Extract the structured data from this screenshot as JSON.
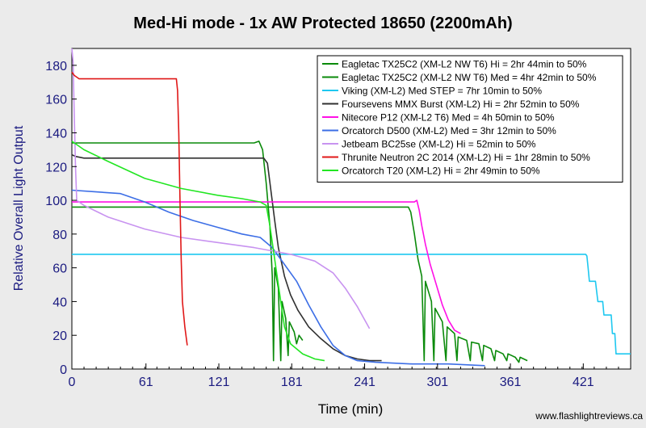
{
  "chart_data": {
    "type": "line",
    "title": "Med-Hi mode - 1x AW Protected 18650 (2200mAh)",
    "xlabel": "Time (min)",
    "ylabel": "Relative Overall Light Output",
    "xlim": [
      0,
      460
    ],
    "ylim": [
      0,
      190
    ],
    "x_ticks": [
      "0",
      "61",
      "121",
      "181",
      "241",
      "301",
      "361",
      "421"
    ],
    "y_ticks": [
      "0",
      "20",
      "40",
      "60",
      "80",
      "100",
      "120",
      "140",
      "160",
      "180"
    ],
    "grid": false,
    "legend_position": "top-right",
    "watermark": "www.flashlightreviews.ca",
    "series": [
      {
        "name": "Eagletac TX25C2 (XM-L2 NW T6) Hi = 2hr 44min to 50%",
        "color": "#0a8a0a",
        "points": [
          [
            0,
            134
          ],
          [
            30,
            134
          ],
          [
            60,
            134
          ],
          [
            90,
            134
          ],
          [
            120,
            134
          ],
          [
            150,
            134
          ],
          [
            154,
            135
          ],
          [
            157,
            130
          ],
          [
            160,
            110
          ],
          [
            163,
            85
          ],
          [
            165,
            55
          ],
          [
            166,
            5
          ],
          [
            167,
            60
          ],
          [
            170,
            48
          ],
          [
            172,
            5
          ],
          [
            173,
            40
          ],
          [
            176,
            30
          ],
          [
            178,
            8
          ],
          [
            179,
            28
          ],
          [
            183,
            22
          ],
          [
            185,
            15
          ],
          [
            187,
            20
          ],
          [
            190,
            17
          ]
        ]
      },
      {
        "name": "Eagletac TX25C2 (XM-L2 NW T6) Med = 4hr 42min to 50%",
        "color": "#0a8a0a",
        "points": [
          [
            0,
            96
          ],
          [
            50,
            96
          ],
          [
            100,
            96
          ],
          [
            150,
            96
          ],
          [
            200,
            96
          ],
          [
            250,
            96
          ],
          [
            277,
            96
          ],
          [
            279,
            93
          ],
          [
            282,
            80
          ],
          [
            285,
            65
          ],
          [
            288,
            55
          ],
          [
            290,
            5
          ],
          [
            291,
            52
          ],
          [
            296,
            40
          ],
          [
            298,
            5
          ],
          [
            299,
            36
          ],
          [
            305,
            28
          ],
          [
            308,
            5
          ],
          [
            309,
            25
          ],
          [
            315,
            21
          ],
          [
            317,
            5
          ],
          [
            318,
            19
          ],
          [
            325,
            17
          ],
          [
            328,
            5
          ],
          [
            329,
            16
          ],
          [
            335,
            15
          ],
          [
            338,
            5
          ],
          [
            339,
            14
          ],
          [
            345,
            12
          ],
          [
            348,
            5
          ],
          [
            349,
            11
          ],
          [
            355,
            9
          ],
          [
            358,
            5
          ],
          [
            359,
            9
          ],
          [
            365,
            7
          ],
          [
            368,
            4
          ],
          [
            369,
            7
          ],
          [
            375,
            5
          ]
        ]
      },
      {
        "name": "Viking (XM-L2) Med STEP = 7hr 10min to 50%",
        "color": "#1ec8f0",
        "points": [
          [
            0,
            68
          ],
          [
            60,
            68
          ],
          [
            120,
            68
          ],
          [
            180,
            68
          ],
          [
            240,
            68
          ],
          [
            300,
            68
          ],
          [
            360,
            68
          ],
          [
            400,
            68
          ],
          [
            423,
            68
          ],
          [
            424,
            67
          ],
          [
            425,
            60
          ],
          [
            426,
            52
          ],
          [
            431,
            52
          ],
          [
            432,
            46
          ],
          [
            433,
            40
          ],
          [
            437,
            40
          ],
          [
            438,
            32
          ],
          [
            444,
            32
          ],
          [
            445,
            21
          ],
          [
            447,
            21
          ],
          [
            448,
            9
          ],
          [
            460,
            9
          ]
        ]
      },
      {
        "name": "Foursevens MMX Burst (XM-L2) Hi = 2hr 52min to 50%",
        "color": "#303030",
        "points": [
          [
            0,
            127
          ],
          [
            3,
            126
          ],
          [
            10,
            125
          ],
          [
            60,
            125
          ],
          [
            120,
            125
          ],
          [
            158,
            125
          ],
          [
            161,
            122
          ],
          [
            164,
            105
          ],
          [
            167,
            88
          ],
          [
            170,
            72
          ],
          [
            175,
            55
          ],
          [
            180,
            44
          ],
          [
            186,
            35
          ],
          [
            195,
            25
          ],
          [
            205,
            18
          ],
          [
            215,
            12
          ],
          [
            225,
            8
          ],
          [
            235,
            6
          ],
          [
            245,
            5
          ],
          [
            255,
            5
          ]
        ]
      },
      {
        "name": "Nitecore P12 (XM-L2 T6) Med = 4h 50min to 50%",
        "color": "#ff10e6",
        "points": [
          [
            0,
            99
          ],
          [
            50,
            99
          ],
          [
            100,
            99
          ],
          [
            150,
            99
          ],
          [
            200,
            99
          ],
          [
            250,
            99
          ],
          [
            282,
            99
          ],
          [
            284,
            100
          ],
          [
            286,
            94
          ],
          [
            288,
            85
          ],
          [
            291,
            74
          ],
          [
            295,
            62
          ],
          [
            300,
            50
          ],
          [
            305,
            38
          ],
          [
            310,
            29
          ],
          [
            315,
            23
          ],
          [
            320,
            21
          ]
        ]
      },
      {
        "name": "Orcatorch D500 (XM-L2) Med = 3hr 12min to 50%",
        "color": "#3c6ee6",
        "points": [
          [
            0,
            106
          ],
          [
            20,
            105
          ],
          [
            40,
            104
          ],
          [
            60,
            99
          ],
          [
            80,
            93
          ],
          [
            100,
            88
          ],
          [
            120,
            84
          ],
          [
            140,
            80
          ],
          [
            155,
            78
          ],
          [
            165,
            72
          ],
          [
            175,
            62
          ],
          [
            185,
            52
          ],
          [
            195,
            38
          ],
          [
            205,
            25
          ],
          [
            215,
            14
          ],
          [
            225,
            8
          ],
          [
            235,
            5
          ],
          [
            250,
            4
          ],
          [
            280,
            3
          ],
          [
            310,
            3
          ],
          [
            340,
            2
          ]
        ]
      },
      {
        "name": "Jetbeam BC25se (XM-L2) Hi = 52min to 50%",
        "color": "#c893f0",
        "points": [
          [
            0,
            190
          ],
          [
            1,
            182
          ],
          [
            2,
            150
          ],
          [
            3,
            120
          ],
          [
            4,
            100
          ],
          [
            10,
            97
          ],
          [
            30,
            90
          ],
          [
            60,
            83
          ],
          [
            90,
            78
          ],
          [
            120,
            75
          ],
          [
            150,
            72
          ],
          [
            180,
            68
          ],
          [
            200,
            64
          ],
          [
            215,
            57
          ],
          [
            225,
            48
          ],
          [
            235,
            37
          ],
          [
            245,
            24
          ]
        ]
      },
      {
        "name": "Thrunite Neutron 2C 2014 (XM-L2) Hi = 1hr 28min to 50%",
        "color": "#e01818",
        "points": [
          [
            0,
            176
          ],
          [
            2,
            174
          ],
          [
            6,
            172
          ],
          [
            20,
            172
          ],
          [
            40,
            172
          ],
          [
            60,
            172
          ],
          [
            80,
            172
          ],
          [
            86,
            172
          ],
          [
            87,
            165
          ],
          [
            88,
            140
          ],
          [
            89,
            100
          ],
          [
            90,
            65
          ],
          [
            91,
            40
          ],
          [
            93,
            25
          ],
          [
            95,
            14
          ]
        ]
      },
      {
        "name": "Orcatorch T20 (XM-L2) Hi = 2hr 49min to 50%",
        "color": "#22e622",
        "points": [
          [
            0,
            135
          ],
          [
            10,
            130
          ],
          [
            30,
            123
          ],
          [
            60,
            113
          ],
          [
            90,
            107
          ],
          [
            120,
            103
          ],
          [
            140,
            101
          ],
          [
            155,
            99
          ],
          [
            160,
            97
          ],
          [
            163,
            85
          ],
          [
            166,
            70
          ],
          [
            169,
            55
          ],
          [
            172,
            40
          ],
          [
            175,
            25
          ],
          [
            180,
            15
          ],
          [
            190,
            9
          ],
          [
            200,
            6
          ],
          [
            208,
            5
          ]
        ]
      }
    ]
  }
}
